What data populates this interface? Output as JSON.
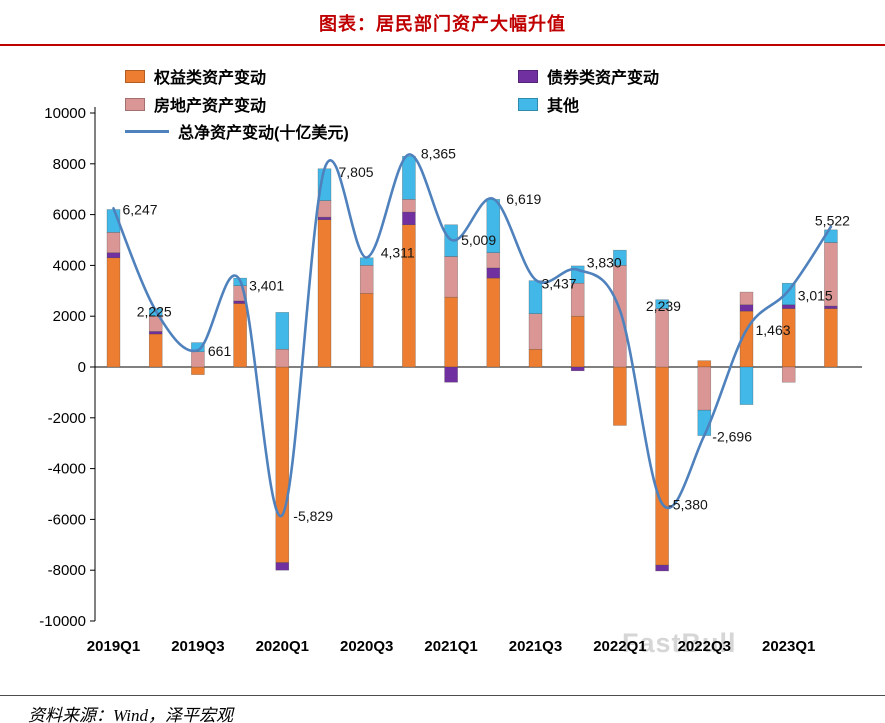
{
  "page": {
    "title": "图表：居民部门资产大幅升值",
    "source": "资料来源：Wind，泽平宏观",
    "watermark": "FastBull"
  },
  "colors": {
    "accent_red": "#c00000",
    "equity": "#ED7D31",
    "bond": "#7030A0",
    "real_estate": "#D99694",
    "other": "#41B8E8",
    "net_line": "#4F81BD"
  },
  "legend": [
    {
      "label": "权益类资产变动",
      "color": "#ED7D31",
      "type": "box"
    },
    {
      "label": "债券类资产变动",
      "color": "#7030A0",
      "type": "box"
    },
    {
      "label": "房地产资产变动",
      "color": "#D99694",
      "type": "box"
    },
    {
      "label": "其他",
      "color": "#41B8E8",
      "type": "box"
    },
    {
      "label": "总净资产变动(十亿美元)",
      "color": "#4F81BD",
      "type": "line"
    }
  ],
  "chart_data": {
    "type": "bar",
    "subtype": "stacked-bars-with-smooth-line",
    "title": "图表：居民部门资产大幅升值",
    "unit": "十亿美元",
    "grid": false,
    "legend_position": "top-left",
    "ylim": [
      -10000,
      10000
    ],
    "y_ticks": [
      10000,
      8000,
      6000,
      4000,
      2000,
      0,
      -2000,
      -4000,
      -6000,
      -8000,
      -10000
    ],
    "categories": [
      "2019Q1",
      "2019Q2",
      "2019Q3",
      "2019Q4",
      "2020Q1",
      "2020Q2",
      "2020Q3",
      "2020Q4",
      "2021Q1",
      "2021Q2",
      "2021Q3",
      "2021Q4",
      "2022Q1",
      "2022Q2",
      "2022Q3",
      "2022Q4",
      "2023Q1",
      "2023Q2"
    ],
    "x_tick_labels": [
      "2019Q1",
      "2019Q3",
      "2020Q1",
      "2020Q3",
      "2021Q1",
      "2021Q3",
      "2022Q1",
      "2022Q3",
      "2023Q1"
    ],
    "series": [
      {
        "name": "权益类资产变动",
        "color": "#ED7D31",
        "values": [
          4300,
          1300,
          -300,
          2500,
          -7700,
          5800,
          2900,
          5600,
          2750,
          3500,
          700,
          2000,
          -2300,
          -7800,
          250,
          2200,
          2300,
          2300
        ]
      },
      {
        "name": "债券类资产变动",
        "color": "#7030A0",
        "values": [
          200,
          100,
          0,
          100,
          -300,
          100,
          0,
          500,
          -600,
          400,
          0,
          -150,
          0,
          -230,
          0,
          250,
          150,
          100
        ]
      },
      {
        "name": "房地产资产变动",
        "color": "#D99694",
        "values": [
          800,
          600,
          600,
          600,
          700,
          650,
          1100,
          500,
          1600,
          600,
          1400,
          1300,
          4000,
          2300,
          -1700,
          500,
          -600,
          2500
        ]
      },
      {
        "name": "其他",
        "color": "#41B8E8",
        "values": [
          900,
          300,
          360,
          300,
          1450,
          1255,
          300,
          1700,
          1250,
          2100,
          1300,
          680,
          600,
          350,
          -1000,
          -1480,
          850,
          500
        ]
      }
    ],
    "line_series": {
      "name": "总净资产变动(十亿美元)",
      "color": "#4F81BD",
      "values": [
        6247,
        2225,
        661,
        3401,
        -5829,
        7805,
        4311,
        8365,
        5009,
        6619,
        3437,
        3830,
        2239,
        -5380,
        -2696,
        1463,
        3015,
        5522
      ]
    }
  }
}
